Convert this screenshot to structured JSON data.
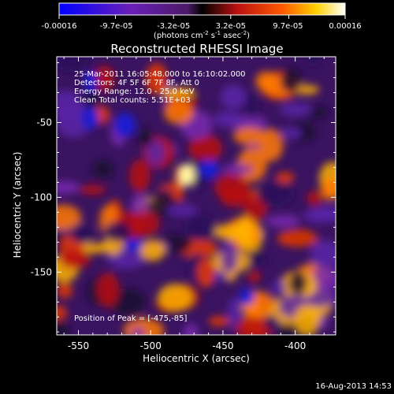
{
  "chart_data": {
    "type": "heatmap",
    "title": "Reconstructed RHESSI Image",
    "xlabel": "Heliocentric X (arcsec)",
    "ylabel": "Heliocentric Y (arcsec)",
    "xlim": [
      -565,
      -372
    ],
    "ylim": [
      -192,
      -6
    ],
    "x_ticks": [
      -550,
      -500,
      -450,
      -400
    ],
    "x_tick_labels": [
      "-550",
      "-500",
      "-450",
      "-400"
    ],
    "y_ticks": [
      -150,
      -100,
      -50
    ],
    "y_tick_labels": [
      "-150",
      "-100",
      "-50"
    ],
    "colorbar": {
      "range": [
        -0.00016,
        0.00016
      ],
      "ticks": [
        -0.00016,
        -9.7e-05,
        -3.2e-05,
        3.2e-05,
        9.7e-05,
        0.00016
      ],
      "tick_labels": [
        "-0.00016",
        "-9.7e-05",
        "-3.2e-05",
        "3.2e-05",
        "9.7e-05",
        "0.00016"
      ],
      "units_main": "(photons cm",
      "units_exp1": "-2",
      "units_mid": " s",
      "units_exp2": "-1",
      "units_end": " asec",
      "units_exp3": "-2",
      "units_close": ")",
      "colormap": "rhessi-blue-purple-red-yellow-white"
    },
    "annotations": {
      "time": "25-Mar-2011 16:05:48.000 to 16:10:02.000",
      "detectors": "Detectors: 4F 5F 6F 7F 8F, Att 0",
      "energy": "Energy Range: 12.0 - 25.0 keV",
      "clean": "Clean     Total counts: 5.51E+03",
      "peak": "Position of Peak = [-475,-85]"
    },
    "peak": {
      "x": -475,
      "y": -85
    },
    "grid": false
  },
  "footer": {
    "date": "16-Aug-2013 14:53"
  }
}
